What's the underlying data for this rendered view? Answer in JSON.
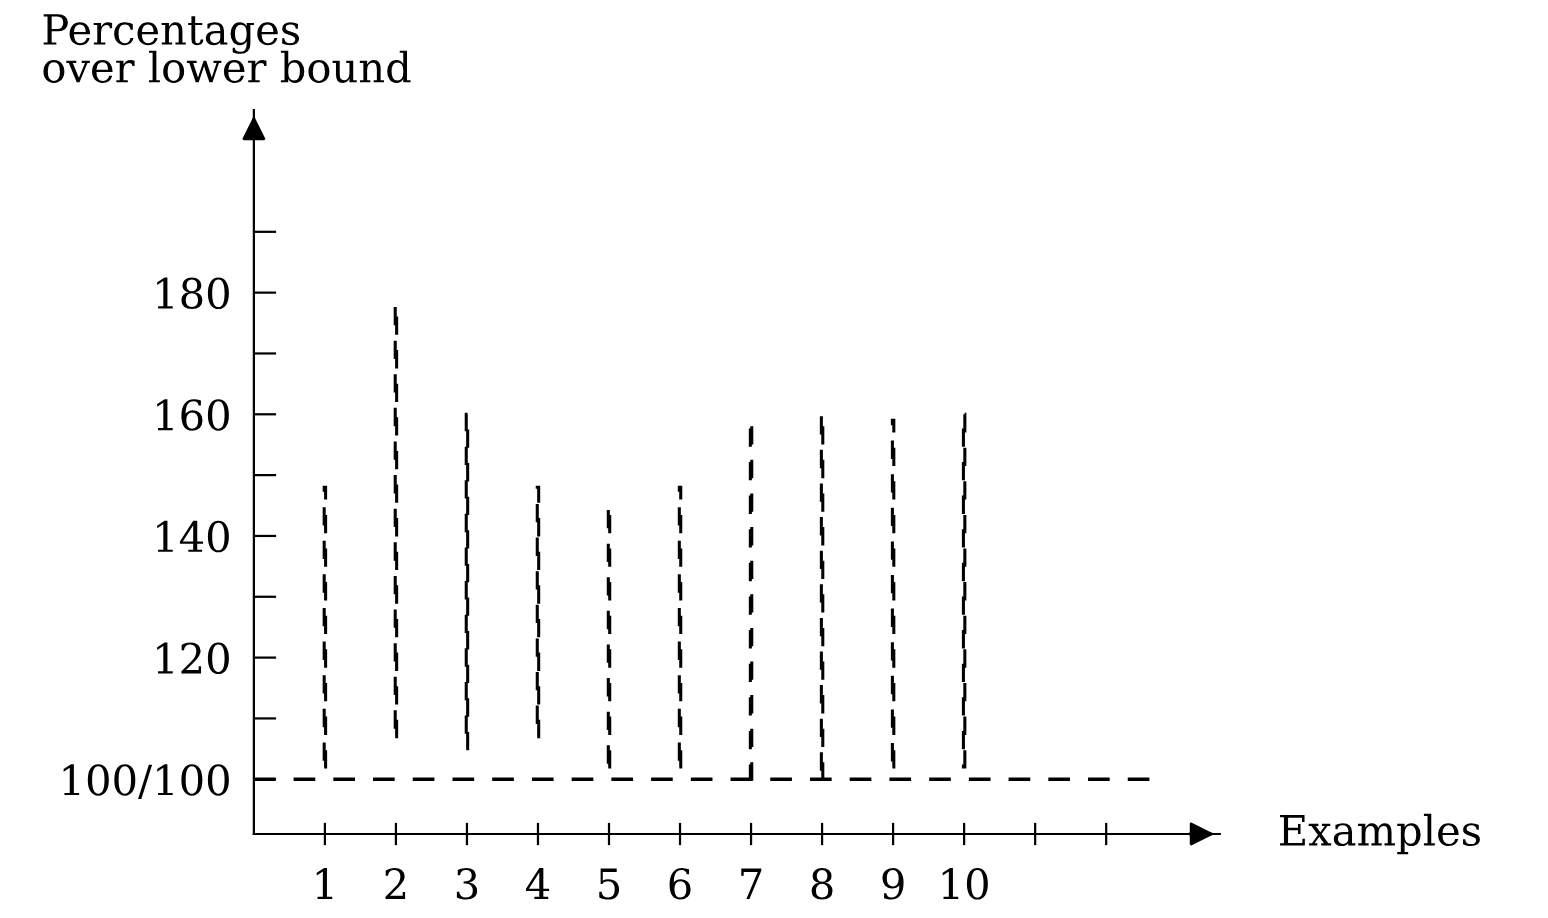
{
  "chart_data": {
    "type": "bar",
    "xlabel": "Examples",
    "ylabel": "Percentages\nover lower bound",
    "x": [
      1,
      2,
      3,
      4,
      5,
      6,
      7,
      8,
      9,
      10
    ],
    "base": [
      102,
      107,
      105,
      107,
      102,
      102,
      100,
      100,
      102,
      102
    ],
    "values": [
      46,
      71,
      55,
      41,
      43,
      46,
      59,
      60,
      57,
      58
    ],
    "color": "#000000",
    "line_style": "dashed",
    "xlim": [
      0,
      13.6
    ],
    "xticks": [
      1,
      2,
      3,
      4,
      5,
      6,
      7,
      8,
      9,
      10,
      {
        "value": 11,
        "label": null
      },
      {
        "value": 12,
        "label": null
      }
    ],
    "ylim": [
      91,
      210
    ],
    "yticks": [
      {
        "value": 100,
        "label": "100/100"
      },
      {
        "value": 110,
        "label": null
      },
      120,
      {
        "value": 130,
        "label": null
      },
      140,
      {
        "value": 150,
        "label": null
      },
      160,
      {
        "value": 170,
        "label": null
      },
      180,
      {
        "value": 190,
        "label": null
      }
    ],
    "ref_lines": [
      {
        "axis": "y",
        "value": 100,
        "color": "#000000",
        "line_style": "dashed"
      }
    ],
    "grid": false,
    "legend": false
  }
}
